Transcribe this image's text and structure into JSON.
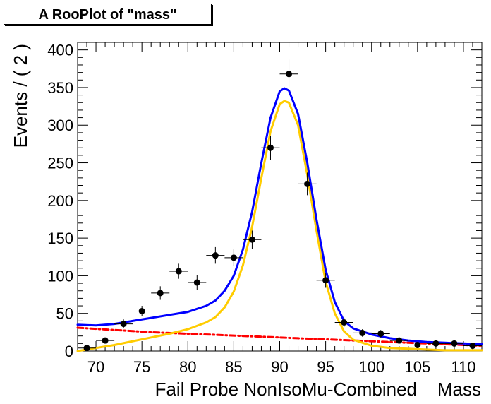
{
  "chart_data": {
    "type": "scatter",
    "title": "A RooPlot of \"mass\"",
    "xlabel": "Fail Probe NonIsoMu-Combined    Mass",
    "ylabel": "Events / ( 2 )",
    "xlim": [
      68,
      112
    ],
    "ylim": [
      0,
      410
    ],
    "xticks": [
      70,
      75,
      80,
      85,
      90,
      95,
      100,
      105,
      110
    ],
    "yticks": [
      0,
      50,
      100,
      150,
      200,
      250,
      300,
      350,
      400
    ],
    "grid": false,
    "legend": "none",
    "data_points": {
      "x": [
        69,
        71,
        73,
        75,
        77,
        79,
        81,
        83,
        85,
        87,
        89,
        91,
        93,
        95,
        97,
        99,
        101,
        103,
        105,
        107,
        109,
        111
      ],
      "y": [
        4,
        14,
        36,
        53,
        77,
        106,
        91,
        127,
        124,
        148,
        270,
        368,
        222,
        94,
        38,
        24,
        23,
        14,
        8,
        10,
        10,
        7
      ],
      "err": [
        2,
        4,
        6,
        7,
        9,
        10,
        10,
        11,
        11,
        12,
        16,
        19,
        15,
        10,
        6,
        5,
        5,
        4,
        3,
        3,
        3,
        3
      ],
      "color": "#000000"
    },
    "series": [
      {
        "color": "#0000ff",
        "style": "solid",
        "x": [
          68,
          70,
          72,
          74,
          76,
          78,
          80,
          82,
          83,
          84,
          85,
          86,
          87,
          88,
          89,
          90,
          90.5,
          91,
          92,
          93,
          94,
          95,
          96,
          97,
          98,
          100,
          102,
          104,
          106,
          108,
          110,
          112
        ],
        "y": [
          35,
          34,
          36,
          40,
          44,
          48,
          52,
          60,
          67,
          80,
          100,
          135,
          185,
          250,
          310,
          345,
          349,
          346,
          315,
          250,
          175,
          108,
          65,
          40,
          30,
          22,
          17,
          14,
          12,
          11,
          10,
          9
        ]
      },
      {
        "color": "#ffcc00",
        "style": "solid",
        "x": [
          68,
          70,
          72,
          74,
          76,
          78,
          80,
          82,
          83,
          84,
          85,
          86,
          87,
          88,
          89,
          90,
          90.5,
          91,
          92,
          93,
          94,
          95,
          96,
          97,
          98,
          100,
          102,
          104,
          106,
          108,
          110,
          112
        ],
        "y": [
          0,
          4,
          8,
          13,
          18,
          23,
          29,
          38,
          45,
          58,
          79,
          114,
          165,
          230,
          292,
          328,
          332,
          330,
          300,
          234,
          160,
          92,
          50,
          26,
          15,
          7,
          4,
          3,
          2,
          1,
          1,
          1
        ]
      },
      {
        "color": "#ff0000",
        "style": "dashdot",
        "x": [
          68,
          72,
          76,
          80,
          84,
          88,
          92,
          96,
          100,
          104,
          108,
          112
        ],
        "y": [
          31,
          28,
          25,
          23,
          21,
          19,
          17,
          15,
          13,
          11,
          9,
          7
        ]
      }
    ]
  }
}
